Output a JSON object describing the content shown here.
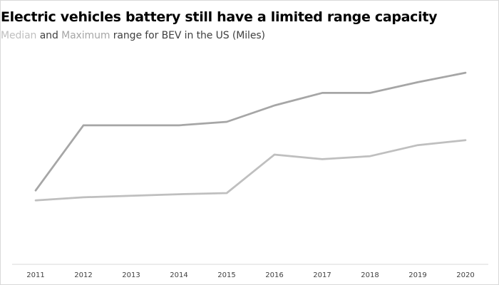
{
  "chart_data": {
    "type": "line",
    "title": "Electric vehicles battery still have a limited range capacity",
    "subtitle": {
      "median_word": "Median",
      "and_word": "and",
      "maximum_word": "Maximum",
      "rest": "range for BEV in the US (Miles)"
    },
    "x": [
      "2011",
      "2012",
      "2013",
      "2014",
      "2015",
      "2016",
      "2017",
      "2018",
      "2019",
      "2020"
    ],
    "series": [
      {
        "name": "Median",
        "color": "#bfbfbf",
        "values": [
          68,
          76,
          80,
          84,
          87,
          188,
          176,
          184,
          213,
          226
        ]
      },
      {
        "name": "Maximum",
        "color": "#a6a6a6",
        "values": [
          94,
          265,
          265,
          265,
          274,
          317,
          350,
          350,
          378,
          403
        ]
      }
    ],
    "ylim": [
      -100,
      405
    ],
    "y_axis_visible": false,
    "grid": false,
    "legend": "none (series named by colored words in subtitle)",
    "colors": {
      "median": "#bfbfbf",
      "maximum": "#a6a6a6",
      "axis": "#d9d9d9",
      "text": "#404040"
    }
  }
}
